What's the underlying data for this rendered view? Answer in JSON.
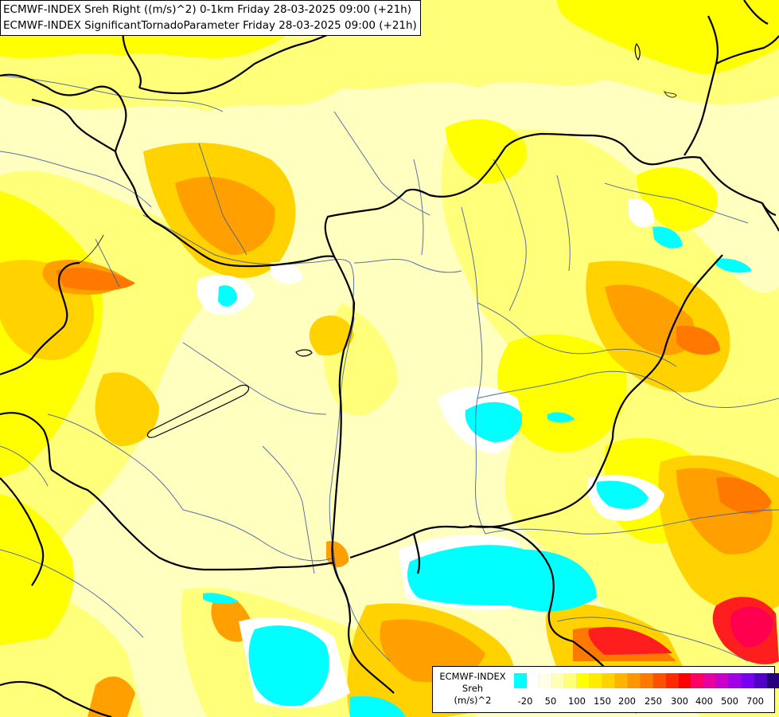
{
  "header": {
    "line1": "ECMWF-INDEX Sreh Right ((m/s)^2) 0-1km Friday 28-03-2025 09:00 (+21h)",
    "line2": "ECMWF-INDEX SignificantTornadoParameter Friday 28-03-2025 09:00 (+21h)"
  },
  "legend": {
    "title1": "ECMWF-INDEX",
    "title2": "Sreh",
    "title3": "(m/s)^2",
    "colors": [
      "#00ffff",
      "#ffffff",
      "#ffffe6",
      "#ffffb4",
      "#ffff78",
      "#ffff00",
      "#ffeb00",
      "#ffd200",
      "#ffb400",
      "#ff9600",
      "#ff7800",
      "#ff5000",
      "#ff2800",
      "#ff0000",
      "#ff0064",
      "#e600a0",
      "#c800c8",
      "#a000e6",
      "#7800f0",
      "#5000c8",
      "#28007d",
      "#000078"
    ],
    "labels": [
      "-20",
      "50",
      "100",
      "150",
      "200",
      "250",
      "300",
      "400",
      "500",
      "700"
    ]
  },
  "palette": {
    "pale": "#ffffc0",
    "yellow_light": "#ffff99",
    "yellow": "#ffff00",
    "gold": "#ffd200",
    "orange": "#ffa000",
    "dark_orange": "#ff7800",
    "red": "#ff2800",
    "crimson": "#ff0050",
    "cyan": "#00ffff",
    "white": "#ffffff",
    "border": "#000000",
    "river": "#3a5aa0"
  }
}
